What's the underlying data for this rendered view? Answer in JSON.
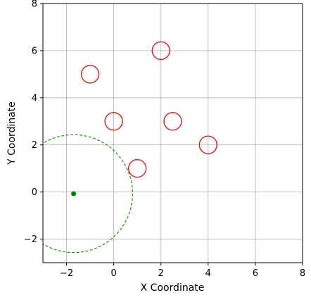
{
  "chart_data": {
    "type": "scatter",
    "title": "",
    "xlabel": "X Coordinate",
    "ylabel": "Y Coordinate",
    "xlim": [
      -3,
      8
    ],
    "ylim": [
      -3,
      8
    ],
    "grid": true,
    "x_ticks": [
      -2,
      0,
      2,
      4,
      6,
      8
    ],
    "y_ticks": [
      -2,
      0,
      2,
      4,
      6,
      8
    ],
    "x_tick_labels": [
      "−2",
      "0",
      "2",
      "4",
      "6",
      "8"
    ],
    "y_tick_labels": [
      "−2",
      "0",
      "2",
      "4",
      "6",
      "8"
    ],
    "series": [
      {
        "marker": "open-circle",
        "color": "#d62728",
        "points": [
          {
            "x": -1,
            "y": 5
          },
          {
            "x": 2,
            "y": 6
          },
          {
            "x": 0,
            "y": 3
          },
          {
            "x": 2.5,
            "y": 3
          },
          {
            "x": 4,
            "y": 2
          },
          {
            "x": 1,
            "y": 1
          }
        ]
      },
      {
        "marker": "filled-dot",
        "color": "#008000",
        "points": [
          {
            "x": -1.7,
            "y": -0.07
          }
        ]
      }
    ],
    "circles": [
      {
        "cx": -1.7,
        "cy": -0.07,
        "r": 2.5,
        "style": "dashed",
        "color": "#228b22"
      }
    ]
  }
}
